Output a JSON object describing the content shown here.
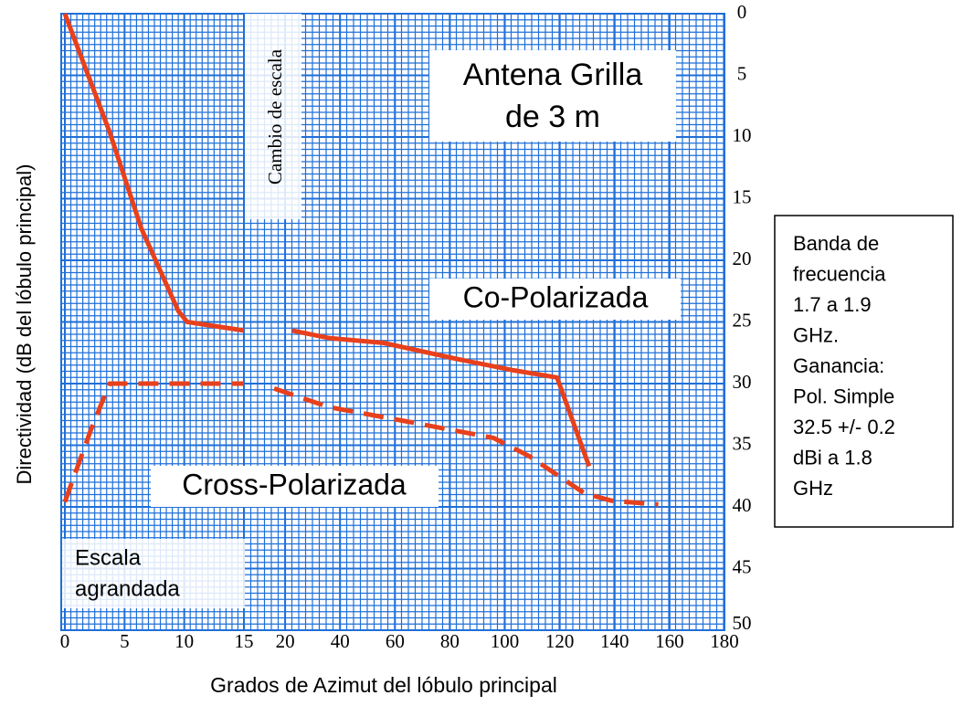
{
  "chart_data": {
    "type": "line",
    "y_label": "Directividad (dB del lóbulo principal)",
    "x_label": "Grados de Azimut del lóbulo principal",
    "ylim": [
      0,
      50
    ],
    "yticks": [
      0,
      5,
      10,
      15,
      20,
      25,
      30,
      35,
      40,
      45,
      50
    ],
    "y_inverted": true,
    "grid": true,
    "x_segments": [
      {
        "xlim": [
          0,
          15
        ],
        "xticks": [
          0,
          5,
          10,
          15
        ]
      },
      {
        "xlim": [
          5,
          180
        ],
        "xticks": [
          20,
          40,
          60,
          80,
          100,
          120,
          140,
          160,
          180
        ]
      }
    ],
    "annotations": {
      "title_box": [
        "Antena Grilla",
        "de 3 m"
      ],
      "scale_change": "Cambio de escala",
      "zoom": [
        "Escala",
        "agrandada"
      ],
      "info": [
        "Banda de",
        "frecuencia",
        "1.7 a 1.9",
        "GHz.",
        "Ganancia:",
        "Pol. Simple",
        "32.5 +/- 0.2",
        "dBi a 1.8",
        "GHz"
      ]
    },
    "series": [
      {
        "name": "Co-Polarizada",
        "color": "#e8401c",
        "dashed": false,
        "segments": [
          {
            "x": [
              0,
              3.75,
              6.4,
              9.5,
              10.25,
              15
            ],
            "values": [
              0,
              9.6,
              17.4,
              24.1,
              25,
              25.7
            ]
          },
          {
            "x": [
              22.6,
              35.9,
              55.9,
              82.5,
              102.5,
              119,
              130.7
            ],
            "values": [
              25.7,
              26.3,
              26.7,
              28,
              28.9,
              29.5,
              36.7
            ]
          }
        ]
      },
      {
        "name": "Cross-Polarizada",
        "color": "#e8401c",
        "dashed": true,
        "segments": [
          {
            "x": [
              0,
              2.2,
              3.75,
              5.3,
              15
            ],
            "values": [
              39.6,
              33.7,
              30,
              30,
              30
            ]
          },
          {
            "x": [
              16,
              35.9,
              62.6,
              95.8,
              109,
              129,
              139,
              155.9
            ],
            "values": [
              30.4,
              31.9,
              33,
              34.4,
              35.9,
              38.9,
              39.5,
              39.8
            ]
          }
        ]
      }
    ]
  }
}
